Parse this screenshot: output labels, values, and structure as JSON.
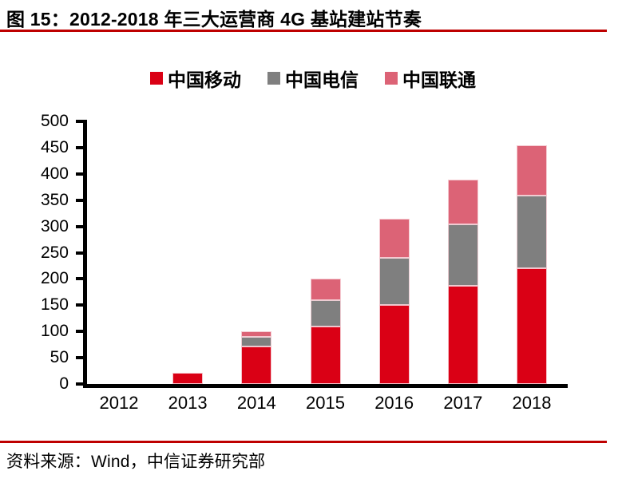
{
  "figure": {
    "title": "图 15：2012-2018 年三大运营商 4G 基站建站节奏",
    "source": "资料来源：Wind，中信证券研究部"
  },
  "colors": {
    "rule_red": "#be0000",
    "axis_black": "#000000",
    "mobile_red": "#da0015",
    "telecom_gray": "#7f7f7f",
    "unicom_pink": "#dc6376"
  },
  "chart_data": {
    "type": "bar",
    "stacked": true,
    "grid": false,
    "legend_position": "top",
    "categories": [
      "2012",
      "2013",
      "2014",
      "2015",
      "2016",
      "2017",
      "2018"
    ],
    "series": [
      {
        "name": "中国移动",
        "color": "#da0015",
        "values": [
          0,
          22,
          72,
          110,
          150,
          187,
          220
        ]
      },
      {
        "name": "中国电信",
        "color": "#7f7f7f",
        "values": [
          0,
          0,
          18,
          50,
          90,
          117,
          138
        ]
      },
      {
        "name": "中国联通",
        "color": "#dc6376",
        "values": [
          0,
          0,
          10,
          40,
          75,
          85,
          97
        ]
      }
    ],
    "stack_totals": [
      0,
      22,
      100,
      200,
      315,
      389,
      455
    ],
    "ylim": [
      0,
      500
    ],
    "ytick_step": 50,
    "yticks": [
      0,
      50,
      100,
      150,
      200,
      250,
      300,
      350,
      400,
      450,
      500
    ],
    "xlabel": "",
    "ylabel": ""
  }
}
